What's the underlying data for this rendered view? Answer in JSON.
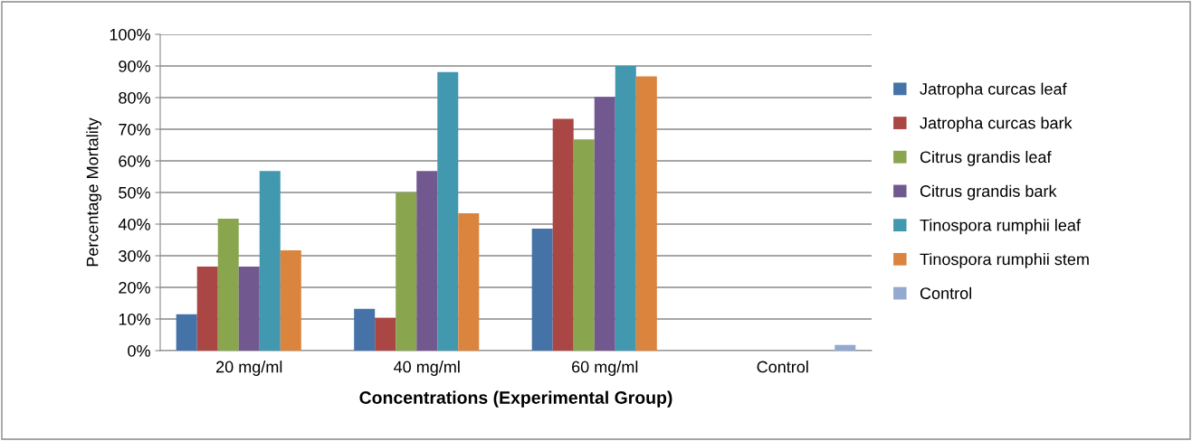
{
  "chart_data": {
    "type": "bar",
    "xlabel": "Concentrations (Experimental Group)",
    "ylabel": "Percentage Mortality",
    "categories": [
      "20 mg/ml",
      "40 mg/ml",
      "60 mg/ml",
      "Control"
    ],
    "series": [
      {
        "name": "Jatropha curcas leaf",
        "color": "#4572a7",
        "values": [
          11.5,
          13.2,
          38.6,
          null
        ]
      },
      {
        "name": "Jatropha curcas bark",
        "color": "#aa4643",
        "values": [
          26.6,
          10.4,
          73.3,
          null
        ]
      },
      {
        "name": "Citrus grandis leaf",
        "color": "#89a54e",
        "values": [
          41.7,
          50,
          66.8,
          null
        ]
      },
      {
        "name": "Citrus grandis bark",
        "color": "#71588f",
        "values": [
          26.6,
          56.8,
          80.2,
          null
        ]
      },
      {
        "name": "Tinospora rumphii leaf",
        "color": "#4198af",
        "values": [
          56.8,
          88.1,
          90,
          null
        ]
      },
      {
        "name": "Tinospora rumphii stem",
        "color": "#db843d",
        "values": [
          31.7,
          43.4,
          86.7,
          null
        ]
      },
      {
        "name": "Control",
        "color": "#93a9cf",
        "values": [
          null,
          null,
          null,
          1.8
        ]
      }
    ],
    "ylim": [
      0,
      100
    ],
    "yticks": [
      {
        "value": 0,
        "label": "0%"
      },
      {
        "value": 10,
        "label": "10%"
      },
      {
        "value": 20,
        "label": "20%"
      },
      {
        "value": 30,
        "label": "30%"
      },
      {
        "value": 40,
        "label": "40%"
      },
      {
        "value": 50,
        "label": "50%"
      },
      {
        "value": 60,
        "label": "60%"
      },
      {
        "value": 70,
        "label": "70%"
      },
      {
        "value": 80,
        "label": "80%"
      },
      {
        "value": 90,
        "label": "90%"
      },
      {
        "value": 100,
        "label": "100%"
      }
    ],
    "grid": "y",
    "legend": "right"
  }
}
